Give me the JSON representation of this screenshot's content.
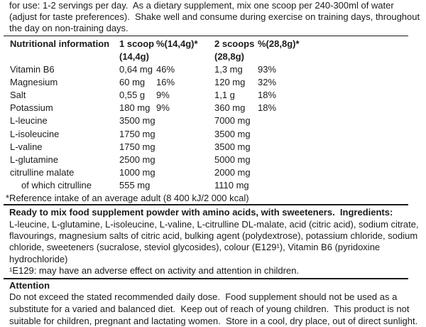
{
  "intro": {
    "lines": [
      "for use: 1-2 servings per day.  As a dietary supplement, mix one scoop per 240-300ml of water",
      "(adjust for taste preferences).  Shake well and consume during exercise on training days, throughout",
      "the day on non-training days."
    ]
  },
  "table": {
    "header": {
      "row1": [
        "Nutritional information",
        "1 scoop",
        "%(14,4g)*",
        "2 scoops",
        "%(28,8g)*"
      ],
      "row2": [
        "",
        "(14,4g)",
        "",
        "(28,8g)",
        ""
      ]
    },
    "rows": [
      {
        "name": "Vitamin B6",
        "amount1": "0,64 mg",
        "pct1": "46%",
        "amount2": "1,3 mg",
        "pct2": "93%"
      },
      {
        "name": "Magnesium",
        "amount1": "60 mg",
        "pct1": "16%",
        "amount2": "120 mg",
        "pct2": "32%"
      },
      {
        "name": "Salt",
        "amount1": "0,55 g",
        "pct1": "9%",
        "amount2": "1,1 g",
        "pct2": "18%"
      },
      {
        "name": "Potassium",
        "amount1": "180 mg",
        "pct1": "9%",
        "amount2": "360 mg",
        "pct2": "18%"
      },
      {
        "name": "L-leucine",
        "amount1": "3500 mg",
        "pct1": "",
        "amount2": "7000 mg",
        "pct2": ""
      },
      {
        "name": "L-isoleucine",
        "amount1": "1750 mg",
        "pct1": "",
        "amount2": "3500 mg",
        "pct2": ""
      },
      {
        "name": "L-valine",
        "amount1": "1750 mg",
        "pct1": "",
        "amount2": "3500 mg",
        "pct2": ""
      },
      {
        "name": "L-glutamine",
        "amount1": "2500 mg",
        "pct1": "",
        "amount2": "5000 mg",
        "pct2": ""
      },
      {
        "name": "citrulline malate",
        "amount1": "1000 mg",
        "pct1": "",
        "amount2": "2000 mg",
        "pct2": ""
      },
      {
        "name": "of which citrulline",
        "amount1": "555 mg",
        "pct1": "",
        "amount2": "1110 mg",
        "pct2": "",
        "indent": true
      }
    ],
    "footnote": "*Reference intake of an average adult (8 400 kJ/2 000 kcal)"
  },
  "ingredients": {
    "heading_line": "Ready to mix food supplement powder with amino acids, with sweeteners.  Ingredients:",
    "lines": [
      "L-leucine, L-glutamine, L-isoleucine, L-valine, L-citrulline DL-malate, acid (citric acid), sodium citrate,",
      "flavourings, magnesium salts of citric acid, bulking agent (polydextrose), potassium chloride, sodium",
      "chloride, sweeteners (sucralose, steviol glycosides), colour (E129¹), Vitamin B6 (pyridoxine",
      "hydrochloride)"
    ],
    "footnote_line": "¹E129: may have an adverse effect on activity and attention in children."
  },
  "attention": {
    "heading": "Attention",
    "lines": [
      "Do not exceed the stated recommended daily dose.  Food supplement should not be used as a",
      "substitute for a varied and balanced diet.  Keep out of reach of young children.  This product is not",
      "suitable for children, pregnant and lactating women.  Store in a cool, dry place, out of direct sunlight."
    ]
  }
}
